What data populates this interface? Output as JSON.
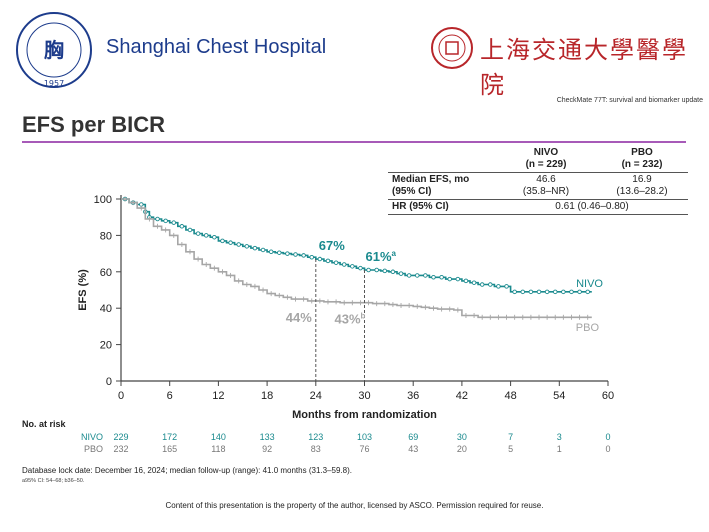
{
  "header": {
    "hospital_name": "Shanghai Chest Hospital",
    "university_name": "上海交通大學醫學院",
    "seal_year": "1957",
    "trial_title": "CheckMate 77T: survival and biomarker update"
  },
  "page_title": "EFS per BICR",
  "table": {
    "col_nivo": "NIVO",
    "col_nivo_n": "(n = 229)",
    "col_pbo": "PBO",
    "col_pbo_n": "(n = 232)",
    "row1_label": "Median EFS, mo",
    "row1_sublabel": "(95% CI)",
    "row1_nivo": "46.6",
    "row1_nivo_ci": "(35.8–NR)",
    "row1_pbo": "16.9",
    "row1_pbo_ci": "(13.6–28.2)",
    "row2_label": "HR (95% CI)",
    "row2_value": "0.61 (0.46–0.80)"
  },
  "chart_data": {
    "type": "line",
    "title": "EFS per BICR",
    "xlabel": "Months from randomization",
    "ylabel": "EFS (%)",
    "xlim": [
      0,
      60
    ],
    "ylim": [
      0,
      100
    ],
    "x_ticks": [
      0,
      6,
      12,
      18,
      24,
      30,
      36,
      42,
      48,
      54,
      60
    ],
    "y_ticks": [
      0,
      20,
      40,
      60,
      80,
      100
    ],
    "series": [
      {
        "name": "NIVO",
        "color": "#1a8a8e",
        "x": [
          0,
          1,
          2,
          3,
          3.5,
          4,
          5,
          6,
          7,
          8,
          9,
          10,
          11,
          12,
          13,
          14,
          15,
          16,
          17,
          18,
          19,
          20,
          21,
          22,
          23,
          24,
          25,
          26,
          27,
          28,
          29,
          30,
          31,
          32,
          33,
          34,
          35,
          36,
          37,
          38,
          39,
          40,
          41,
          42,
          43,
          44,
          45,
          46,
          47,
          48,
          49,
          50,
          51,
          52,
          53,
          54,
          55,
          56,
          57,
          58
        ],
        "y": [
          100,
          98,
          97,
          93,
          90,
          89,
          88,
          87,
          85,
          83,
          81,
          80,
          79,
          77,
          76,
          75,
          74,
          73,
          72,
          71,
          70.5,
          70,
          69.5,
          69,
          68,
          67,
          66,
          65,
          64,
          63,
          62,
          61,
          61,
          60.5,
          60,
          59,
          58,
          58,
          58,
          57,
          57,
          56,
          56,
          55,
          54,
          53,
          53,
          52,
          52,
          49,
          49,
          49,
          49,
          49,
          49,
          49,
          49,
          49,
          49,
          49
        ]
      },
      {
        "name": "PBO",
        "color": "#a6a6a6",
        "x": [
          0,
          1,
          2,
          3,
          4,
          5,
          6,
          7,
          8,
          9,
          10,
          11,
          12,
          13,
          14,
          15,
          16,
          17,
          18,
          19,
          20,
          21,
          22,
          23,
          24,
          25,
          26,
          27,
          28,
          29,
          30,
          31,
          32,
          33,
          34,
          35,
          36,
          37,
          38,
          39,
          40,
          41,
          42,
          43,
          44,
          45,
          46,
          47,
          48,
          49,
          50,
          51,
          52,
          53,
          54,
          55,
          56,
          57,
          58
        ],
        "y": [
          100,
          98,
          95,
          89,
          85,
          83,
          80,
          75,
          71,
          67,
          64,
          62,
          60,
          58,
          55,
          53,
          52,
          50,
          48,
          47,
          46,
          45,
          45,
          44,
          44,
          43.5,
          43.5,
          43,
          43,
          43,
          43,
          42.5,
          42.5,
          42,
          41.5,
          41.5,
          41,
          40.5,
          40,
          39.5,
          39.5,
          39,
          36,
          36,
          35,
          35,
          35,
          35,
          35,
          35,
          35,
          35,
          35,
          35,
          35,
          35,
          35,
          35,
          35
        ]
      }
    ],
    "annotations": [
      {
        "text": "67%",
        "x": 24,
        "y": 67,
        "series": "NIVO"
      },
      {
        "text": "61%",
        "superscript": "a",
        "x": 30,
        "y": 61,
        "series": "NIVO"
      },
      {
        "text": "44%",
        "x": 24,
        "y": 44,
        "series": "PBO"
      },
      {
        "text": "43%",
        "superscript": "b",
        "x": 30,
        "y": 43,
        "series": "PBO"
      }
    ],
    "series_labels": [
      "NIVO",
      "PBO"
    ],
    "at_risk": {
      "title": "No. at risk",
      "rows": [
        {
          "name": "NIVO",
          "values": [
            229,
            172,
            140,
            133,
            123,
            103,
            69,
            30,
            7,
            3,
            0
          ]
        },
        {
          "name": "PBO",
          "values": [
            232,
            165,
            118,
            92,
            83,
            76,
            43,
            20,
            5,
            1,
            0
          ]
        }
      ]
    }
  },
  "footer": {
    "lock_date": "Database lock date: December 16, 2024; median follow-up (range): 41.0 months (31.3–59.8).",
    "ci_note": "a95% CI: 54–68; b36–50.",
    "copyright": "Content of this presentation is the property of the author, licensed by ASCO. Permission required for reuse."
  }
}
